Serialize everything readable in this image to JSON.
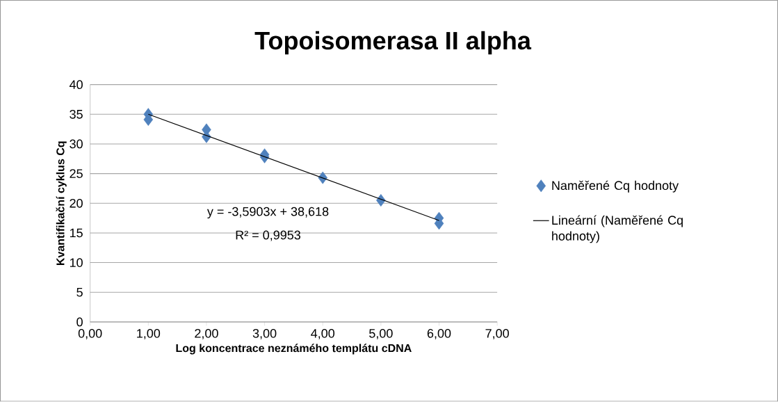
{
  "chart_data": {
    "type": "scatter",
    "title": "Topoisomerasa II alpha",
    "xlabel": "Log  koncentrace neznámého templátu cDNA",
    "ylabel": "Kvantifikační cyklus Cq",
    "series": [
      {
        "name": "Naměřené Cq hodnoty",
        "type": "scatter",
        "color": "#4f81bd",
        "marker": "diamond",
        "x": [
          1,
          1,
          2,
          2,
          3,
          3,
          4,
          5,
          6,
          6
        ],
        "values": [
          35.0,
          34.1,
          32.4,
          31.2,
          28.2,
          27.8,
          24.3,
          20.5,
          17.5,
          16.6
        ]
      },
      {
        "name": "Lineární (Naměřené Cq hodnoty)",
        "type": "line",
        "color": "#000000",
        "marker": "none",
        "x": [
          1,
          6
        ],
        "values": [
          35.0,
          17.1
        ]
      }
    ],
    "annotations": [
      "y = -3,5903x + 38,618",
      "R² = 0,9953"
    ],
    "xlim": [
      0,
      7
    ],
    "ylim": [
      0,
      40
    ],
    "xticks": [
      {
        "value": 0,
        "label": "0,00"
      },
      {
        "value": 1,
        "label": "1,00"
      },
      {
        "value": 2,
        "label": "2,00"
      },
      {
        "value": 3,
        "label": "3,00"
      },
      {
        "value": 4,
        "label": "4,00"
      },
      {
        "value": 5,
        "label": "5,00"
      },
      {
        "value": 6,
        "label": "6,00"
      },
      {
        "value": 7,
        "label": "7,00"
      }
    ],
    "yticks": [
      0,
      5,
      10,
      15,
      20,
      25,
      30,
      35,
      40
    ],
    "grid": "y",
    "legend": "right"
  }
}
